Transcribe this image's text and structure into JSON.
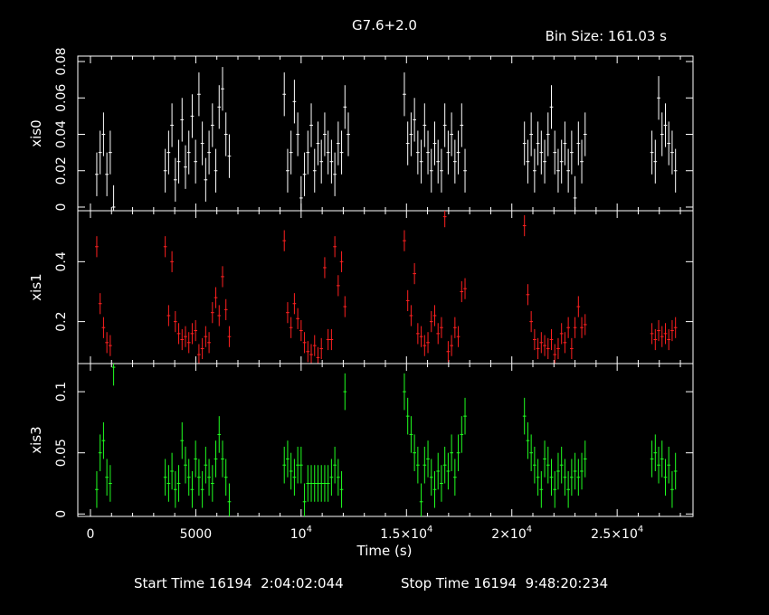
{
  "chart_data": {
    "type": "scatter",
    "title": "G7.6+2.0",
    "bin_size_label": "Bin Size: 161.03 s",
    "xlabel": "Time (s)",
    "xlim": [
      -600,
      28600
    ],
    "x_ticks": [
      {
        "value": 0,
        "label": "0"
      },
      {
        "value": 5000,
        "label": "5000"
      },
      {
        "value": 10000,
        "label": "10",
        "exp": "4"
      },
      {
        "value": 15000,
        "label": "1.5×10",
        "exp": "4"
      },
      {
        "value": 20000,
        "label": "2×10",
        "exp": "4"
      },
      {
        "value": 25000,
        "label": "2.5×10",
        "exp": "4"
      }
    ],
    "colors": {
      "xis0": "#ffffff",
      "xis1": "#ff2020",
      "xis3": "#20ff20",
      "frame": "#ffffff"
    },
    "panels": [
      {
        "ylabel": "xis0",
        "ylim": [
          -0.002,
          0.083
        ],
        "y_ticks": [
          {
            "value": 0,
            "label": "0"
          },
          {
            "value": 0.02,
            "label": "0.02"
          },
          {
            "value": 0.04,
            "label": "0.04"
          },
          {
            "value": 0.06,
            "label": "0.06"
          },
          {
            "value": 0.08,
            "label": "0.08"
          }
        ],
        "points": [
          [
            300,
            0.018
          ],
          [
            460,
            0.03
          ],
          [
            620,
            0.04
          ],
          [
            780,
            0.018
          ],
          [
            940,
            0.03
          ],
          [
            1100,
            0.0
          ],
          [
            3550,
            0.02
          ],
          [
            3710,
            0.03
          ],
          [
            3870,
            0.045
          ],
          [
            4030,
            0.015
          ],
          [
            4190,
            0.025
          ],
          [
            4350,
            0.048
          ],
          [
            4510,
            0.022
          ],
          [
            4670,
            0.03
          ],
          [
            4830,
            0.05
          ],
          [
            4990,
            0.025
          ],
          [
            5150,
            0.062
          ],
          [
            5310,
            0.035
          ],
          [
            5470,
            0.015
          ],
          [
            5630,
            0.03
          ],
          [
            5790,
            0.045
          ],
          [
            5950,
            0.02
          ],
          [
            6110,
            0.055
          ],
          [
            6270,
            0.065
          ],
          [
            6430,
            0.04
          ],
          [
            6590,
            0.028
          ],
          [
            9200,
            0.062
          ],
          [
            9360,
            0.02
          ],
          [
            9520,
            0.03
          ],
          [
            9680,
            0.058
          ],
          [
            9840,
            0.04
          ],
          [
            10000,
            0.005
          ],
          [
            10160,
            0.018
          ],
          [
            10320,
            0.03
          ],
          [
            10480,
            0.045
          ],
          [
            10640,
            0.02
          ],
          [
            10800,
            0.035
          ],
          [
            10960,
            0.025
          ],
          [
            11120,
            0.04
          ],
          [
            11280,
            0.03
          ],
          [
            11440,
            0.025
          ],
          [
            11600,
            0.018
          ],
          [
            11760,
            0.035
          ],
          [
            11920,
            0.03
          ],
          [
            12080,
            0.055
          ],
          [
            12240,
            0.04
          ],
          [
            14900,
            0.062
          ],
          [
            15060,
            0.035
          ],
          [
            15220,
            0.04
          ],
          [
            15380,
            0.048
          ],
          [
            15540,
            0.03
          ],
          [
            15700,
            0.025
          ],
          [
            15860,
            0.045
          ],
          [
            16020,
            0.03
          ],
          [
            16180,
            0.02
          ],
          [
            16340,
            0.035
          ],
          [
            16500,
            0.025
          ],
          [
            16660,
            0.02
          ],
          [
            16820,
            0.045
          ],
          [
            16980,
            0.03
          ],
          [
            17140,
            0.04
          ],
          [
            17300,
            0.025
          ],
          [
            17460,
            0.03
          ],
          [
            17620,
            0.045
          ],
          [
            17780,
            0.02
          ],
          [
            20600,
            0.035
          ],
          [
            20760,
            0.025
          ],
          [
            20920,
            0.04
          ],
          [
            21080,
            0.02
          ],
          [
            21240,
            0.035
          ],
          [
            21400,
            0.03
          ],
          [
            21560,
            0.025
          ],
          [
            21720,
            0.04
          ],
          [
            21880,
            0.055
          ],
          [
            22040,
            0.03
          ],
          [
            22200,
            0.02
          ],
          [
            22360,
            0.025
          ],
          [
            22520,
            0.035
          ],
          [
            22680,
            0.02
          ],
          [
            22840,
            0.03
          ],
          [
            23000,
            0.005
          ],
          [
            23160,
            0.035
          ],
          [
            23320,
            0.025
          ],
          [
            23480,
            0.04
          ],
          [
            26650,
            0.03
          ],
          [
            26810,
            0.025
          ],
          [
            26970,
            0.06
          ],
          [
            27130,
            0.04
          ],
          [
            27290,
            0.045
          ],
          [
            27450,
            0.035
          ],
          [
            27610,
            0.03
          ],
          [
            27770,
            0.02
          ]
        ],
        "errors": 0.012
      },
      {
        "ylabel": "xis1",
        "ylim": [
          0.06,
          0.57
        ],
        "y_ticks": [
          {
            "value": 0.2,
            "label": "0.2"
          },
          {
            "value": 0.4,
            "label": "0.4"
          }
        ],
        "points": [
          [
            300,
            0.45
          ],
          [
            460,
            0.26
          ],
          [
            620,
            0.18
          ],
          [
            780,
            0.13
          ],
          [
            940,
            0.12
          ],
          [
            3550,
            0.45
          ],
          [
            3710,
            0.22
          ],
          [
            3870,
            0.4
          ],
          [
            4030,
            0.2
          ],
          [
            4190,
            0.16
          ],
          [
            4350,
            0.14
          ],
          [
            4510,
            0.15
          ],
          [
            4670,
            0.13
          ],
          [
            4830,
            0.16
          ],
          [
            4990,
            0.17
          ],
          [
            5150,
            0.09
          ],
          [
            5310,
            0.11
          ],
          [
            5470,
            0.15
          ],
          [
            5630,
            0.13
          ],
          [
            5790,
            0.23
          ],
          [
            5950,
            0.28
          ],
          [
            6110,
            0.22
          ],
          [
            6270,
            0.35
          ],
          [
            6430,
            0.24
          ],
          [
            6590,
            0.15
          ],
          [
            9200,
            0.47
          ],
          [
            9360,
            0.23
          ],
          [
            9520,
            0.18
          ],
          [
            9680,
            0.26
          ],
          [
            9840,
            0.21
          ],
          [
            10000,
            0.17
          ],
          [
            10160,
            0.13
          ],
          [
            10320,
            0.1
          ],
          [
            10480,
            0.09
          ],
          [
            10640,
            0.12
          ],
          [
            10800,
            0.08
          ],
          [
            10960,
            0.11
          ],
          [
            11120,
            0.38
          ],
          [
            11280,
            0.14
          ],
          [
            11440,
            0.14
          ],
          [
            11600,
            0.45
          ],
          [
            11760,
            0.32
          ],
          [
            11920,
            0.4
          ],
          [
            12080,
            0.25
          ],
          [
            14900,
            0.47
          ],
          [
            15060,
            0.27
          ],
          [
            15220,
            0.22
          ],
          [
            15380,
            0.36
          ],
          [
            15540,
            0.16
          ],
          [
            15700,
            0.15
          ],
          [
            15860,
            0.12
          ],
          [
            16020,
            0.13
          ],
          [
            16180,
            0.2
          ],
          [
            16340,
            0.22
          ],
          [
            16500,
            0.16
          ],
          [
            16660,
            0.18
          ],
          [
            16820,
            0.55
          ],
          [
            16980,
            0.1
          ],
          [
            17140,
            0.12
          ],
          [
            17300,
            0.18
          ],
          [
            17460,
            0.15
          ],
          [
            17620,
            0.3
          ],
          [
            17780,
            0.31
          ],
          [
            20600,
            0.52
          ],
          [
            20760,
            0.29
          ],
          [
            20920,
            0.2
          ],
          [
            21080,
            0.14
          ],
          [
            21240,
            0.11
          ],
          [
            21400,
            0.13
          ],
          [
            21560,
            0.12
          ],
          [
            21720,
            0.11
          ],
          [
            21880,
            0.14
          ],
          [
            22040,
            0.09
          ],
          [
            22200,
            0.11
          ],
          [
            22360,
            0.16
          ],
          [
            22520,
            0.13
          ],
          [
            22680,
            0.18
          ],
          [
            22840,
            0.11
          ],
          [
            23000,
            0.18
          ],
          [
            23160,
            0.25
          ],
          [
            23320,
            0.18
          ],
          [
            23480,
            0.19
          ],
          [
            26650,
            0.16
          ],
          [
            26810,
            0.14
          ],
          [
            26970,
            0.17
          ],
          [
            27130,
            0.15
          ],
          [
            27290,
            0.16
          ],
          [
            27450,
            0.14
          ],
          [
            27610,
            0.17
          ],
          [
            27770,
            0.18
          ]
        ],
        "errors": 0.035
      },
      {
        "ylabel": "xis3",
        "ylim": [
          -0.002,
          0.123
        ],
        "y_ticks": [
          {
            "value": 0,
            "label": "0"
          },
          {
            "value": 0.05,
            "label": "0.05"
          },
          {
            "value": 0.1,
            "label": "0.1"
          }
        ],
        "points": [
          [
            300,
            0.02
          ],
          [
            460,
            0.05
          ],
          [
            620,
            0.06
          ],
          [
            780,
            0.03
          ],
          [
            940,
            0.025
          ],
          [
            1100,
            0.12
          ],
          [
            3550,
            0.03
          ],
          [
            3710,
            0.025
          ],
          [
            3870,
            0.035
          ],
          [
            4030,
            0.02
          ],
          [
            4190,
            0.025
          ],
          [
            4350,
            0.06
          ],
          [
            4510,
            0.04
          ],
          [
            4670,
            0.03
          ],
          [
            4830,
            0.02
          ],
          [
            4990,
            0.045
          ],
          [
            5150,
            0.03
          ],
          [
            5310,
            0.02
          ],
          [
            5470,
            0.04
          ],
          [
            5630,
            0.03
          ],
          [
            5790,
            0.025
          ],
          [
            5950,
            0.045
          ],
          [
            6110,
            0.065
          ],
          [
            6270,
            0.045
          ],
          [
            6430,
            0.03
          ],
          [
            6590,
            0.01
          ],
          [
            9200,
            0.04
          ],
          [
            9360,
            0.045
          ],
          [
            9520,
            0.035
          ],
          [
            9680,
            0.03
          ],
          [
            9840,
            0.04
          ],
          [
            10000,
            0.04
          ],
          [
            10160,
            0.01
          ],
          [
            10320,
            0.025
          ],
          [
            10480,
            0.025
          ],
          [
            10640,
            0.025
          ],
          [
            10800,
            0.025
          ],
          [
            10960,
            0.025
          ],
          [
            11120,
            0.025
          ],
          [
            11280,
            0.025
          ],
          [
            11440,
            0.03
          ],
          [
            11600,
            0.04
          ],
          [
            11760,
            0.03
          ],
          [
            11920,
            0.02
          ],
          [
            12080,
            0.1
          ],
          [
            14900,
            0.1
          ],
          [
            15060,
            0.08
          ],
          [
            15220,
            0.065
          ],
          [
            15380,
            0.05
          ],
          [
            15540,
            0.04
          ],
          [
            15700,
            0.01
          ],
          [
            15860,
            0.04
          ],
          [
            16020,
            0.045
          ],
          [
            16180,
            0.03
          ],
          [
            16340,
            0.02
          ],
          [
            16500,
            0.035
          ],
          [
            16660,
            0.025
          ],
          [
            16820,
            0.04
          ],
          [
            16980,
            0.035
          ],
          [
            17140,
            0.05
          ],
          [
            17300,
            0.03
          ],
          [
            17460,
            0.05
          ],
          [
            17620,
            0.065
          ],
          [
            17780,
            0.08
          ],
          [
            20600,
            0.08
          ],
          [
            20760,
            0.06
          ],
          [
            20920,
            0.05
          ],
          [
            21080,
            0.04
          ],
          [
            21240,
            0.03
          ],
          [
            21400,
            0.02
          ],
          [
            21560,
            0.045
          ],
          [
            21720,
            0.04
          ],
          [
            21880,
            0.03
          ],
          [
            22040,
            0.02
          ],
          [
            22200,
            0.035
          ],
          [
            22360,
            0.04
          ],
          [
            22520,
            0.03
          ],
          [
            22680,
            0.02
          ],
          [
            22840,
            0.03
          ],
          [
            23000,
            0.035
          ],
          [
            23160,
            0.03
          ],
          [
            23320,
            0.035
          ],
          [
            23480,
            0.045
          ],
          [
            26650,
            0.045
          ],
          [
            26810,
            0.05
          ],
          [
            26970,
            0.04
          ],
          [
            27130,
            0.045
          ],
          [
            27290,
            0.03
          ],
          [
            27450,
            0.04
          ],
          [
            27610,
            0.02
          ],
          [
            27770,
            0.035
          ]
        ],
        "errors": 0.015
      }
    ]
  },
  "footer": {
    "start_label": "Start Time 16194  2:04:02:044",
    "stop_label": "Stop Time 16194  9:48:20:234"
  }
}
